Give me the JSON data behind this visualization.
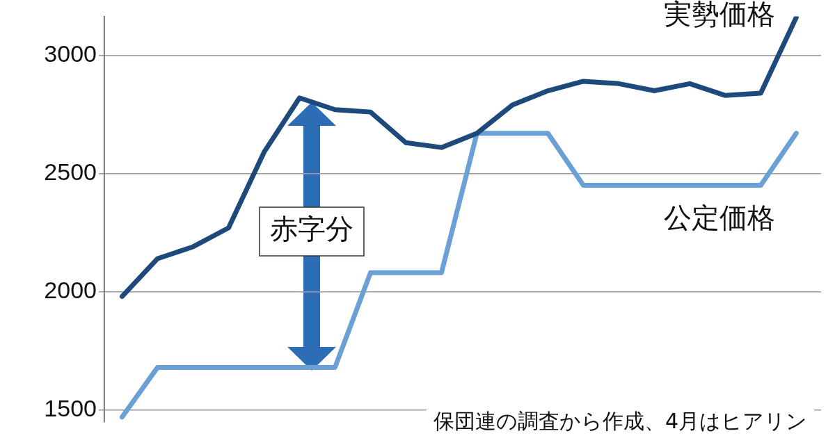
{
  "chart_data": {
    "type": "line",
    "categories": [
      null,
      null,
      null,
      null,
      null,
      null,
      null,
      null,
      null,
      null,
      null,
      null,
      null,
      null,
      null,
      null,
      null,
      null,
      null,
      null
    ],
    "series": [
      {
        "name": "実勢価格",
        "color": "#1d4a7a",
        "values": [
          1980,
          2140,
          2190,
          2270,
          2590,
          2820,
          2770,
          2760,
          2630,
          2610,
          2670,
          2790,
          2850,
          2890,
          2880,
          2850,
          2880,
          2830,
          2840,
          3160
        ]
      },
      {
        "name": "公定価格",
        "color": "#6aa0d6",
        "values": [
          1470,
          1680,
          1680,
          1680,
          1680,
          1680,
          1680,
          2080,
          2080,
          2080,
          2670,
          2670,
          2670,
          2450,
          2450,
          2450,
          2450,
          2450,
          2450,
          2670
        ]
      }
    ],
    "ylim": [
      1450,
      3165
    ],
    "yticks": [
      1500,
      2000,
      2500,
      3000
    ],
    "grid": "y",
    "legend": false,
    "marker": "none",
    "line_style": "solid",
    "tick_labels": "y",
    "annotations": [
      "赤字分",
      "保団連の調査から作成、4月はヒアリン"
    ]
  }
}
